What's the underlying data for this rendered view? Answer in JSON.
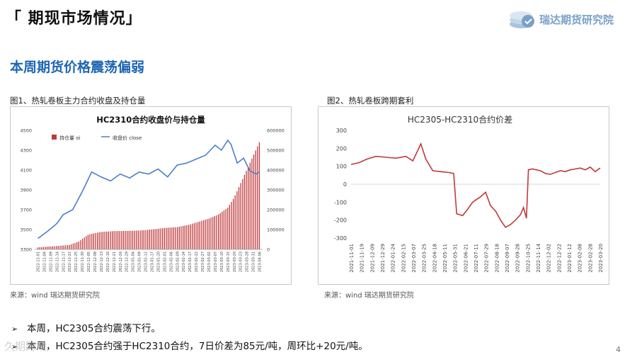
{
  "page": {
    "title": "「 期现市场情况」",
    "subtitle": "本周期货价格震荡偏弱",
    "logo_text": "瑞达期货研究院",
    "page_number": "4",
    "watermark": "久期跨境"
  },
  "figures": {
    "fig1_caption": "图1、热轧卷板主力合约收盘及持仓量",
    "fig2_caption": "图2、热轧卷板跨期套利",
    "source1": "来源：wind   瑞达期货研究院",
    "source2": "来源：wind   瑞达期货研究院"
  },
  "bullets": [
    {
      "text": "本周，HC2305合约震荡下行。"
    },
    {
      "text": "本周，HC2305合约强于HC2310合约，7日价差为85元/吨，周环比+20元/吨。"
    }
  ],
  "colors": {
    "title": "#111111",
    "subtitle": "#1e66b5",
    "bar": "#c0393b",
    "price_line": "#4a7fc8",
    "spread_line": "#c0393b",
    "logo": "#7aa0c8"
  },
  "chart_data": [
    {
      "type": "bar+line",
      "title": "HC2310合约收盘价与持仓量",
      "legend": [
        "持仓量 oi",
        "收盘价 close"
      ],
      "legend_position": "top",
      "y_left": {
        "min": 3300,
        "max": 4500,
        "ticks": [
          3300,
          3500,
          3700,
          3900,
          4100,
          4300,
          4500
        ]
      },
      "y_right": {
        "min": 0,
        "max": 600000,
        "ticks": [
          0,
          100000,
          200000,
          300000,
          400000,
          500000,
          600000
        ]
      },
      "x_labels": [
        "2022-11-01",
        "2022-11-04",
        "2022-11-09",
        "2022-11-14",
        "2022-11-17",
        "2022-11-22",
        "2022-11-25",
        "2022-11-30",
        "2022-12-05",
        "2022-12-08",
        "2022-12-13",
        "2022-12-16",
        "2022-12-21",
        "2022-12-26",
        "2022-12-29",
        "2023-01-04",
        "2023-01-09",
        "2023-01-12",
        "2023-01-17",
        "2023-01-20",
        "2023-02-01",
        "2023-02-06",
        "2023-02-09",
        "2023-02-14",
        "2023-02-17",
        "2023-02-22",
        "2023-02-27",
        "2023-03-02",
        "2023-03-07",
        "2023-03-10",
        "2023-03-15",
        "2023-03-20",
        "2023-03-23",
        "2023-03-28",
        "2023-03-31",
        "2023-04-06"
      ],
      "close_x": [
        0,
        1.5,
        3,
        4,
        5.5,
        7,
        8.5,
        10,
        11.5,
        13,
        14.5,
        16,
        17.5,
        19,
        20.5,
        22,
        23.5,
        25,
        26.5,
        28,
        29,
        30,
        30.5,
        31.5,
        32.5,
        33.5,
        34.5,
        35
      ],
      "close": [
        3410,
        3480,
        3560,
        3650,
        3700,
        3880,
        4080,
        4030,
        3990,
        4060,
        4020,
        4080,
        4060,
        4110,
        4030,
        4150,
        4170,
        4210,
        4250,
        4350,
        4300,
        4400,
        4360,
        4170,
        4220,
        4090,
        4060,
        4080
      ],
      "oi_x": [
        0,
        3,
        5,
        6.5,
        8,
        10,
        12,
        14,
        16,
        18,
        20,
        22,
        24,
        25.5,
        27,
        28.5,
        30,
        31,
        32,
        33,
        34,
        35
      ],
      "oi": [
        10000,
        17000,
        22000,
        40000,
        75000,
        88000,
        92000,
        93000,
        95000,
        100000,
        108000,
        112000,
        125000,
        140000,
        155000,
        175000,
        210000,
        260000,
        330000,
        400000,
        470000,
        540000
      ]
    },
    {
      "type": "line",
      "title": "HC2305-HC2310合约价差",
      "y": {
        "min": -300,
        "max": 300,
        "ticks": [
          -300,
          -200,
          -100,
          0,
          100,
          200,
          300
        ]
      },
      "x_labels": [
        "2021-11-01",
        "2021-11-19",
        "2021-12-09",
        "2021-12-29",
        "2022-01-24",
        "2022-02-15",
        "2022-03-07",
        "2022-03-25",
        "2022-04-18",
        "2022-05-11",
        "2022-05-31",
        "2022-06-21",
        "2022-07-11",
        "2022-07-29",
        "2022-08-18",
        "2022-09-07",
        "2022-09-28",
        "2022-10-25",
        "2022-11-14",
        "2022-12-02",
        "2022-12-22",
        "2023-01-12",
        "2023-02-08",
        "2023-02-28",
        "2023-03-20"
      ],
      "x": [
        0,
        0.8,
        1.6,
        2.5,
        3.5,
        4.5,
        5.5,
        6.2,
        7,
        7.5,
        8.2,
        9,
        9.8,
        10.3,
        10.6,
        11.2,
        11.7,
        12.2,
        13,
        13.5,
        14,
        14.5,
        15,
        15.5,
        16,
        16.5,
        17,
        17.3,
        17.6,
        17.8,
        18.2,
        19,
        19.5,
        20,
        20.5,
        21,
        21.5,
        22,
        22.5,
        23,
        23.5,
        24,
        24.5,
        25
      ],
      "values": [
        110,
        120,
        140,
        155,
        150,
        145,
        155,
        130,
        225,
        140,
        75,
        70,
        65,
        60,
        -165,
        -175,
        -140,
        -100,
        -70,
        -45,
        -120,
        -150,
        -200,
        -240,
        -225,
        -200,
        -170,
        -130,
        -190,
        80,
        85,
        75,
        60,
        55,
        65,
        75,
        70,
        80,
        85,
        90,
        80,
        95,
        70,
        90
      ]
    }
  ]
}
